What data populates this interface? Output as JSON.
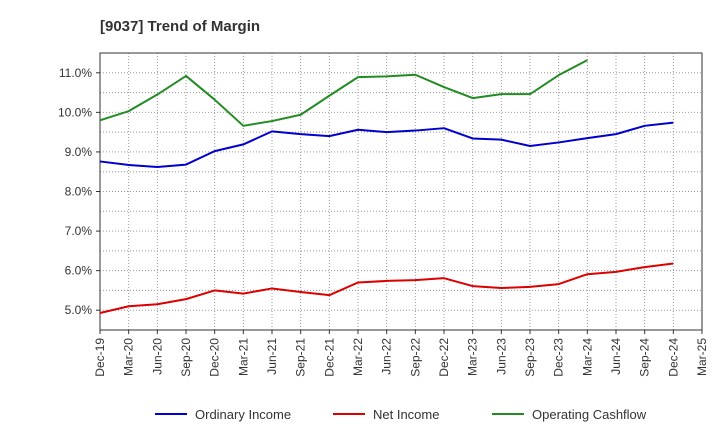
{
  "chart_data": {
    "type": "line",
    "title": "[9037]  Trend of Margin",
    "xlabel": "",
    "ylabel": "",
    "y_unit": "%",
    "ylim": [
      4.5,
      11.5
    ],
    "yticks": [
      5.0,
      6.0,
      7.0,
      8.0,
      9.0,
      10.0,
      11.0
    ],
    "ytick_labels": [
      "5.0%",
      "6.0%",
      "7.0%",
      "8.0%",
      "9.0%",
      "10.0%",
      "11.0%"
    ],
    "x": [
      "Dec-19",
      "Mar-20",
      "Jun-20",
      "Sep-20",
      "Dec-20",
      "Mar-21",
      "Jun-21",
      "Sep-21",
      "Dec-21",
      "Mar-22",
      "Jun-22",
      "Sep-22",
      "Dec-22",
      "Mar-23",
      "Jun-23",
      "Sep-23",
      "Dec-23",
      "Mar-24",
      "Jun-24",
      "Sep-24",
      "Dec-24",
      "Mar-25"
    ],
    "grid": true,
    "legend_position": "bottom",
    "series": [
      {
        "name": "Ordinary Income",
        "color": "#0000cc",
        "values": [
          8.76,
          8.67,
          8.62,
          8.68,
          9.02,
          9.19,
          9.52,
          9.45,
          9.4,
          9.56,
          9.5,
          9.54,
          9.6,
          9.34,
          9.31,
          9.15,
          9.24,
          9.35,
          9.45,
          9.66,
          9.74,
          null
        ]
      },
      {
        "name": "Net Income",
        "color": "#dd0000",
        "values": [
          4.93,
          5.1,
          5.15,
          5.28,
          5.5,
          5.42,
          5.55,
          5.46,
          5.38,
          5.7,
          5.74,
          5.76,
          5.81,
          5.61,
          5.56,
          5.59,
          5.66,
          5.91,
          5.97,
          6.09,
          6.18,
          null
        ]
      },
      {
        "name": "Operating Cashflow",
        "color": "#228b22",
        "values": [
          9.8,
          10.03,
          10.45,
          10.92,
          10.32,
          9.66,
          9.78,
          9.94,
          10.42,
          10.89,
          10.91,
          10.95,
          10.64,
          10.36,
          10.46,
          10.46,
          10.94,
          11.32,
          null,
          null,
          null,
          null
        ]
      }
    ]
  }
}
